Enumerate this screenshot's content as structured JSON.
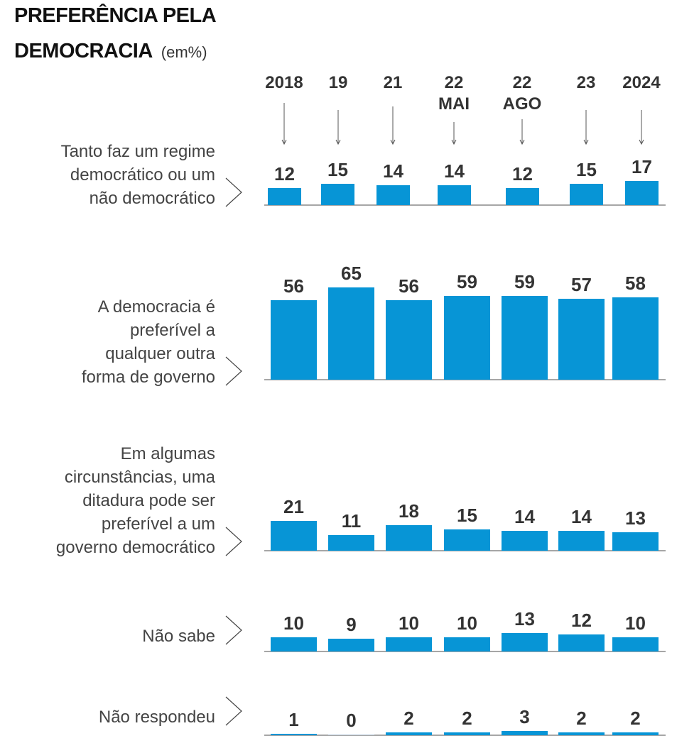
{
  "title_line1": "PREFERÊNCIA PELA",
  "title_line2": "DEMOCRACIA",
  "unit": "(em%)",
  "chart_data": {
    "type": "bar",
    "bar_color": "#0795d6",
    "categories": [
      [
        "2018"
      ],
      [
        "19"
      ],
      [
        "21"
      ],
      [
        "22",
        "MAI"
      ],
      [
        "22",
        "AGO"
      ],
      [
        "23"
      ],
      [
        "2024"
      ]
    ],
    "series": [
      {
        "name": [
          "Tanto faz um regime",
          "democrático ou um",
          "não democrático"
        ],
        "values": [
          12,
          15,
          14,
          14,
          12,
          15,
          17
        ]
      },
      {
        "name": [
          "A democracia é",
          "preferível a",
          "qualquer outra",
          "forma de governo"
        ],
        "values": [
          56,
          65,
          56,
          59,
          59,
          57,
          58
        ]
      },
      {
        "name": [
          "Em algumas",
          "circunstâncias, uma",
          "ditadura pode ser",
          "preferível a um",
          "governo democrático"
        ],
        "values": [
          21,
          11,
          18,
          15,
          14,
          14,
          13
        ]
      },
      {
        "name": [
          "Não sabe"
        ],
        "values": [
          10,
          9,
          10,
          10,
          13,
          12,
          10
        ]
      },
      {
        "name": [
          "Não respondeu"
        ],
        "values": [
          1,
          0,
          2,
          2,
          3,
          2,
          2
        ]
      }
    ]
  }
}
